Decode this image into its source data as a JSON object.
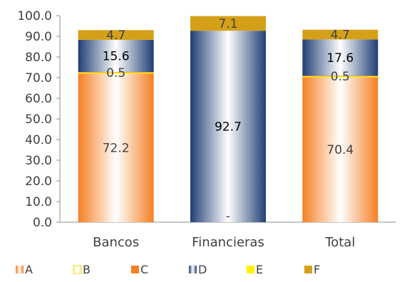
{
  "chart_data": {
    "type": "bar",
    "stacked": true,
    "categories": [
      "Bancos",
      "Financieras",
      "Total"
    ],
    "ylim": [
      0,
      100
    ],
    "yticks": [
      "0.0",
      "10.0",
      "20.0",
      "30.0",
      "40.0",
      "50.0",
      "60.0",
      "70.0",
      "80.0",
      "90.0",
      "100.0"
    ],
    "grid": false,
    "legend_position": "bottom",
    "series": [
      {
        "name": "A",
        "values": [
          72.2,
          0,
          70.4
        ],
        "labels": [
          "72.2",
          "",
          "70.4"
        ],
        "color": "#F58025",
        "style": "gradient-orange"
      },
      {
        "name": "B",
        "values": [
          0,
          0,
          0
        ],
        "labels": [
          "",
          "",
          ""
        ],
        "color": "#FFF3A0",
        "style": "gradient-yellow"
      },
      {
        "name": "C",
        "values": [
          0.5,
          0,
          0.5
        ],
        "labels": [
          "0.5",
          "",
          "0.5"
        ],
        "color": "#F58025",
        "style": "solid"
      },
      {
        "name": "D",
        "values": [
          15.6,
          92.7,
          17.6
        ],
        "labels": [
          "15.6",
          "92.7",
          "17.6"
        ],
        "color": "#1F3F73",
        "style": "gradient-blue"
      },
      {
        "name": "E",
        "values": [
          0,
          0,
          0
        ],
        "labels": [
          "",
          "",
          ""
        ],
        "color": "#FFF200",
        "style": "solid"
      },
      {
        "name": "F",
        "values": [
          4.7,
          7.1,
          4.7
        ],
        "labels": [
          "4.7",
          "7.1",
          "4.7"
        ],
        "color": "#D4A017",
        "style": "solid"
      }
    ],
    "annotations": [
      {
        "category": "Financieras",
        "text": "-"
      }
    ]
  }
}
